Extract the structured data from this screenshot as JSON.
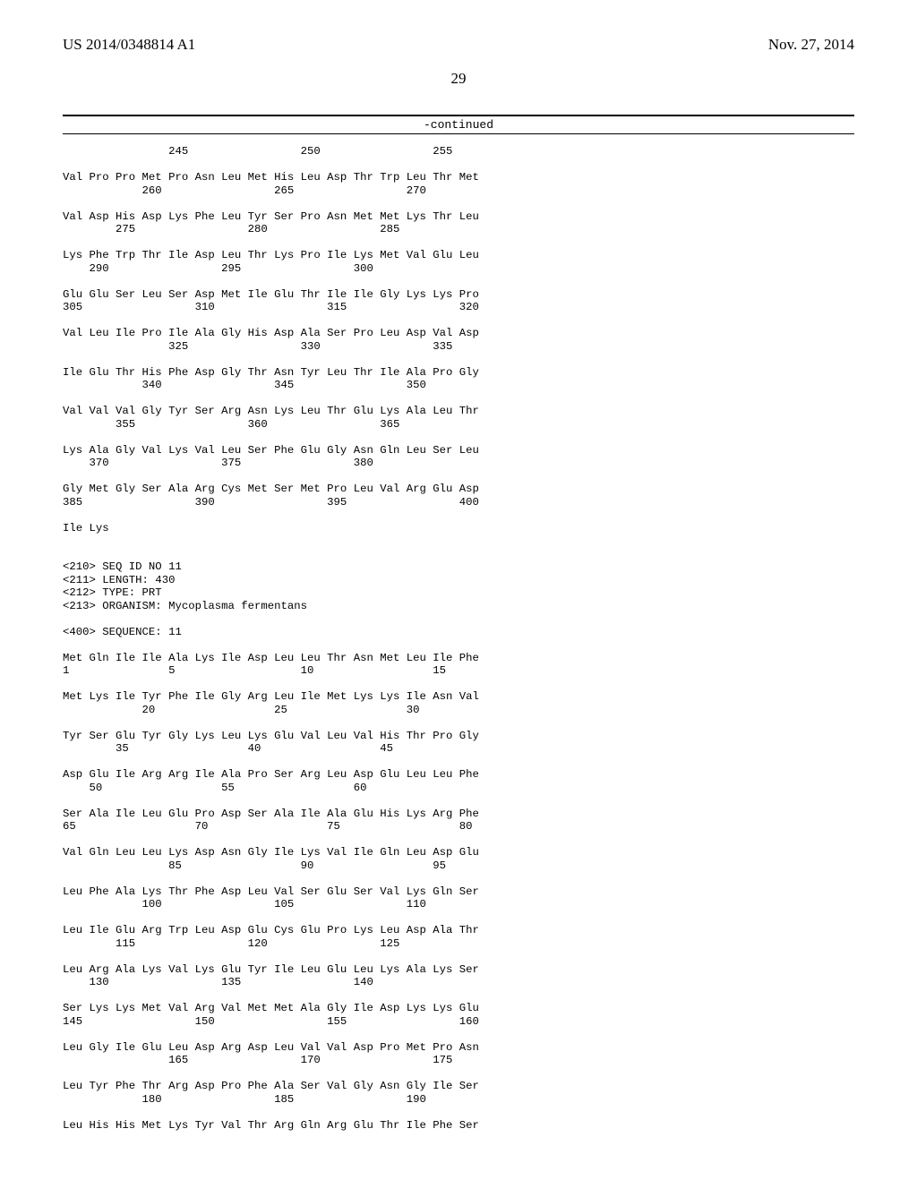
{
  "header": {
    "pub_number": "US 2014/0348814 A1",
    "pub_date": "Nov. 27, 2014",
    "page_number": "29",
    "continued_label": "-continued"
  },
  "seq_lines": [
    "                245                 250                 255",
    "",
    "Val Pro Pro Met Pro Asn Leu Met His Leu Asp Thr Trp Leu Thr Met",
    "            260                 265                 270",
    "",
    "Val Asp His Asp Lys Phe Leu Tyr Ser Pro Asn Met Met Lys Thr Leu",
    "        275                 280                 285",
    "",
    "Lys Phe Trp Thr Ile Asp Leu Thr Lys Pro Ile Lys Met Val Glu Leu",
    "    290                 295                 300",
    "",
    "Glu Glu Ser Leu Ser Asp Met Ile Glu Thr Ile Ile Gly Lys Lys Pro",
    "305                 310                 315                 320",
    "",
    "Val Leu Ile Pro Ile Ala Gly His Asp Ala Ser Pro Leu Asp Val Asp",
    "                325                 330                 335",
    "",
    "Ile Glu Thr His Phe Asp Gly Thr Asn Tyr Leu Thr Ile Ala Pro Gly",
    "            340                 345                 350",
    "",
    "Val Val Val Gly Tyr Ser Arg Asn Lys Leu Thr Glu Lys Ala Leu Thr",
    "        355                 360                 365",
    "",
    "Lys Ala Gly Val Lys Val Leu Ser Phe Glu Gly Asn Gln Leu Ser Leu",
    "    370                 375                 380",
    "",
    "Gly Met Gly Ser Ala Arg Cys Met Ser Met Pro Leu Val Arg Glu Asp",
    "385                 390                 395                 400",
    "",
    "Ile Lys",
    "",
    "",
    "<210> SEQ ID NO 11",
    "<211> LENGTH: 430",
    "<212> TYPE: PRT",
    "<213> ORGANISM: Mycoplasma fermentans",
    "",
    "<400> SEQUENCE: 11",
    "",
    "Met Gln Ile Ile Ala Lys Ile Asp Leu Leu Thr Asn Met Leu Ile Phe",
    "1               5                   10                  15",
    "",
    "Met Lys Ile Tyr Phe Ile Gly Arg Leu Ile Met Lys Lys Ile Asn Val",
    "            20                  25                  30",
    "",
    "Tyr Ser Glu Tyr Gly Lys Leu Lys Glu Val Leu Val His Thr Pro Gly",
    "        35                  40                  45",
    "",
    "Asp Glu Ile Arg Arg Ile Ala Pro Ser Arg Leu Asp Glu Leu Leu Phe",
    "    50                  55                  60",
    "",
    "Ser Ala Ile Leu Glu Pro Asp Ser Ala Ile Ala Glu His Lys Arg Phe",
    "65                  70                  75                  80",
    "",
    "Val Gln Leu Leu Lys Asp Asn Gly Ile Lys Val Ile Gln Leu Asp Glu",
    "                85                  90                  95",
    "",
    "Leu Phe Ala Lys Thr Phe Asp Leu Val Ser Glu Ser Val Lys Gln Ser",
    "            100                 105                 110",
    "",
    "Leu Ile Glu Arg Trp Leu Asp Glu Cys Glu Pro Lys Leu Asp Ala Thr",
    "        115                 120                 125",
    "",
    "Leu Arg Ala Lys Val Lys Glu Tyr Ile Leu Glu Leu Lys Ala Lys Ser",
    "    130                 135                 140",
    "",
    "Ser Lys Lys Met Val Arg Val Met Met Ala Gly Ile Asp Lys Lys Glu",
    "145                 150                 155                 160",
    "",
    "Leu Gly Ile Glu Leu Asp Arg Asp Leu Val Val Asp Pro Met Pro Asn",
    "                165                 170                 175",
    "",
    "Leu Tyr Phe Thr Arg Asp Pro Phe Ala Ser Val Gly Asn Gly Ile Ser",
    "            180                 185                 190",
    "",
    "Leu His His Met Lys Tyr Val Thr Arg Gln Arg Glu Thr Ile Phe Ser"
  ]
}
